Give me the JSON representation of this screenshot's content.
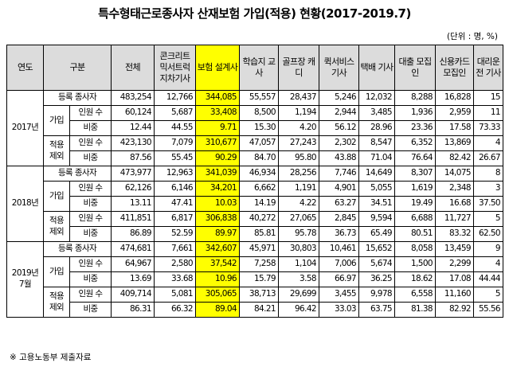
{
  "title": "특수형태근로종사자 산재보험 가입(적용) 현황(2017-2019.7)",
  "unit": "(단위 : 명, %)",
  "source": "※ 고용노동부 제출자료",
  "headers": {
    "year": "연도",
    "category": "구분",
    "cols": [
      "전체",
      "콘크리트 믹서트럭 지차기사",
      "보험 설계사",
      "학습지 교사",
      "골프장 캐디",
      "퀵서비스 기사",
      "택배 기사",
      "대출 모집인",
      "신용카드 모집인",
      "대리운전 기사"
    ]
  },
  "years": [
    {
      "label": "2017년",
      "registered": {
        "label": "등록 종사자",
        "values": [
          "483,254",
          "12,766",
          "344,085",
          "55,557",
          "28,437",
          "5,246",
          "12,032",
          "8,288",
          "16,828",
          "15"
        ]
      },
      "join": {
        "label": "가입",
        "count_label": "인원 수",
        "count": [
          "60,124",
          "5,687",
          "33,408",
          "8,500",
          "1,194",
          "2,944",
          "3,485",
          "1,936",
          "2,959",
          "11"
        ],
        "ratio_label": "비중",
        "ratio": [
          "12.44",
          "44.55",
          "9.71",
          "15.30",
          "4.20",
          "56.12",
          "28.96",
          "23.36",
          "17.58",
          "73.33"
        ]
      },
      "exempt": {
        "label": "적용 제외",
        "count_label": "인원 수",
        "count": [
          "423,130",
          "7,079",
          "310,677",
          "47,057",
          "27,243",
          "2,302",
          "8,547",
          "6,352",
          "13,869",
          "4"
        ],
        "ratio_label": "비중",
        "ratio": [
          "87.56",
          "55.45",
          "90.29",
          "84.70",
          "95.80",
          "43.88",
          "71.04",
          "76.64",
          "82.42",
          "26.67"
        ]
      }
    },
    {
      "label": "2018년",
      "registered": {
        "label": "등록 종사자",
        "values": [
          "473,977",
          "12,963",
          "341,039",
          "46,934",
          "28,256",
          "7,746",
          "14,649",
          "8,307",
          "14,075",
          "8"
        ]
      },
      "join": {
        "label": "가입",
        "count_label": "인원 수",
        "count": [
          "62,126",
          "6,146",
          "34,201",
          "6,662",
          "1,191",
          "4,901",
          "5,055",
          "1,619",
          "2,348",
          "3"
        ],
        "ratio_label": "비중",
        "ratio": [
          "13.11",
          "47.41",
          "10.03",
          "14.19",
          "4.22",
          "63.27",
          "34.51",
          "19.49",
          "16.68",
          "37.50"
        ]
      },
      "exempt": {
        "label": "적용 제외",
        "count_label": "인원 수",
        "count": [
          "411,851",
          "6,817",
          "306,838",
          "40,272",
          "27,065",
          "2,845",
          "9,594",
          "6,688",
          "11,727",
          "5"
        ],
        "ratio_label": "비중",
        "ratio": [
          "86.89",
          "52.59",
          "89.97",
          "85.81",
          "95.78",
          "36.73",
          "65.49",
          "80.51",
          "83.32",
          "62.50"
        ]
      }
    },
    {
      "label": "2019년 7월",
      "registered": {
        "label": "등록 종사자",
        "values": [
          "474,681",
          "7,661",
          "342,607",
          "45,971",
          "30,803",
          "10,461",
          "15,652",
          "8,058",
          "13,459",
          "9"
        ]
      },
      "join": {
        "label": "가입",
        "count_label": "인원 수",
        "count": [
          "64,967",
          "2,580",
          "37,542",
          "7,258",
          "1,104",
          "7,006",
          "5,674",
          "1,500",
          "2,299",
          "4"
        ],
        "ratio_label": "비중",
        "ratio": [
          "13.69",
          "33.68",
          "10.96",
          "15.79",
          "3.58",
          "66.97",
          "36.25",
          "18.62",
          "17.08",
          "44.44"
        ]
      },
      "exempt": {
        "label": "적용 제외",
        "count_label": "인원 수",
        "count": [
          "409,714",
          "5,081",
          "305,065",
          "38,713",
          "29,699",
          "3,455",
          "9,978",
          "6,558",
          "11,160",
          "5"
        ],
        "ratio_label": "비중",
        "ratio": [
          "86.31",
          "66.32",
          "89.04",
          "84.21",
          "96.42",
          "33.03",
          "63.75",
          "81.38",
          "82.92",
          "55.56"
        ]
      }
    }
  ],
  "highlight_color": "#ffff00",
  "header_bg": "#dcdcdc"
}
